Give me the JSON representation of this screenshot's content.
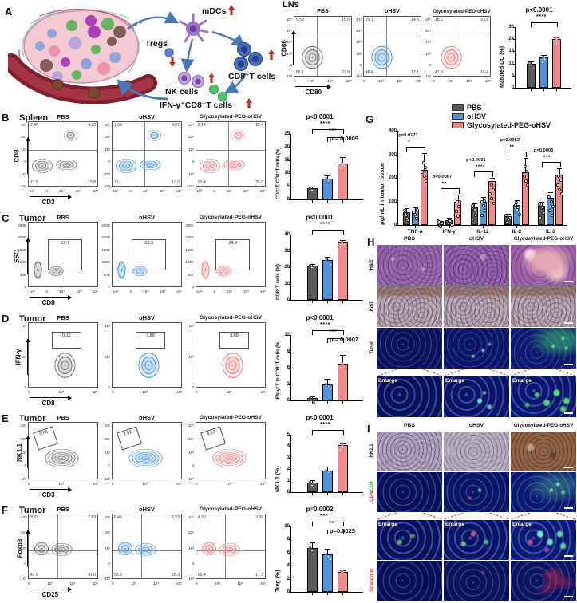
{
  "colors": {
    "pbs": "#595959",
    "ohsv": "#4e95de",
    "glyco": "#f1898b",
    "sig_red": "#b5342c",
    "arrow_blue": "#4878b8"
  },
  "groups": [
    "PBS",
    "oHSV",
    "Glycosylated-PEG-oHSV"
  ],
  "panel_a": {
    "label": "A",
    "mdcs": "mDCs",
    "tregs": "Tregs",
    "nk": "NK cells",
    "cd8": "CD8⁺T cells",
    "ifng": "IFN-γ⁺CD8⁺T cells",
    "trends": {
      "mdcs": "up",
      "tregs": "down",
      "nk": "up",
      "cd8": "up",
      "ifng": "up"
    }
  },
  "flow_rows": [
    {
      "key": "lns",
      "panel_label": "",
      "tissue": "LNs",
      "y_axis": "CD86",
      "x_axis": "CD80",
      "mode": "quad",
      "y_ticks": [
        "10⁵",
        "10⁴",
        "10³",
        "10²",
        "0",
        "-10²"
      ],
      "x_ticks": [
        "0",
        "10³",
        "10⁴",
        "10⁵"
      ],
      "values": [
        [
          "9.59",
          "10.5",
          "56.1",
          "23.9"
        ],
        [
          "20.1",
          "14.5",
          "48.4",
          "17.1"
        ],
        [
          "18.2",
          "23.5",
          "41.9",
          "16.4"
        ]
      ],
      "bar": {
        "ylabel": "Matured DC (%)",
        "max": 30,
        "ticks": [
          0,
          6,
          12,
          18,
          24,
          30
        ],
        "means": [
          12,
          15,
          24
        ],
        "errs": [
          0.9,
          1.2,
          0.9
        ],
        "sig": [
          {
            "text": "p<0.0001",
            "stars": "****"
          }
        ]
      }
    },
    {
      "key": "b",
      "panel_label": "B",
      "tissue": "Spleen",
      "y_axis": "CD8",
      "x_axis": "CD3",
      "mode": "quad",
      "y_ticks": [
        "10⁵",
        "10⁴",
        "10³",
        "0",
        "-10³",
        "-10⁴"
      ],
      "x_ticks": [
        "-10³",
        "0",
        "10³",
        "10⁴",
        "10⁵"
      ],
      "values": [
        [
          "2.46",
          "4.28",
          "77.5",
          "15.8"
        ],
        [
          "1.96",
          "6.07",
          "79.1",
          "13.0"
        ],
        [
          "2.14",
          "12.4",
          "60.4",
          "25.0"
        ]
      ],
      "bar": {
        "ylabel": "CD3⁺T CD8⁺T cells (%)",
        "max": 25,
        "ticks": [
          0,
          5,
          10,
          15,
          20,
          25
        ],
        "means": [
          4.3,
          8,
          13.7
        ],
        "errs": [
          0.5,
          1.1,
          2.6
        ],
        "sig": [
          {
            "text": "p<0.0001",
            "stars": "****"
          },
          {
            "text": "p = 0.0009",
            "stars": "***"
          }
        ]
      }
    },
    {
      "key": "c",
      "panel_label": "C",
      "tissue": "Tumor",
      "y_axis": "SSC",
      "x_axis": "CD8",
      "mode": "gate",
      "y_ticks": [
        "250K",
        "200K",
        "150K",
        "100K",
        "50K",
        "0"
      ],
      "x_ticks": [
        "-10⁴",
        "0",
        "10⁴",
        "10⁵",
        "10⁶"
      ],
      "values": [
        "19.7",
        "23.3",
        "34.9"
      ],
      "bar": {
        "ylabel": "CD8⁺T cells (%)",
        "max": 40,
        "ticks": [
          0,
          10,
          20,
          30,
          40
        ],
        "means": [
          21,
          24.5,
          35
        ],
        "errs": [
          1,
          1.6,
          1.6
        ],
        "sig": [
          {
            "text": "p<0.0001",
            "stars": "****"
          }
        ]
      }
    },
    {
      "key": "d",
      "panel_label": "D",
      "tissue": "Tumor",
      "y_axis": "IFN-γ",
      "x_axis": "CD8",
      "mode": "gate",
      "y_ticks": [
        "10³",
        "10²",
        "0"
      ],
      "x_ticks": [
        "0",
        "10³",
        "10⁵"
      ],
      "values": [
        "0.12",
        "3.89",
        "9.89"
      ],
      "bar": {
        "ylabel": "IFN-γ⁺T in CD8⁺T cells (%)",
        "max": 12,
        "ticks": [
          0,
          3,
          6,
          9,
          12
        ],
        "means": [
          0.5,
          3,
          6.8
        ],
        "errs": [
          0.3,
          0.9,
          1.6
        ],
        "sig": [
          {
            "text": "p<0.0001",
            "stars": "****"
          },
          {
            "text": "p = 0.0007",
            "stars": "***"
          }
        ]
      }
    },
    {
      "key": "e",
      "panel_label": "E",
      "tissue": "Tumor",
      "y_axis": "NK1.1",
      "x_axis": "CD3",
      "mode": "gate-diamond",
      "y_ticks": [
        "10⁵",
        "10⁴",
        "10³",
        "0",
        "-10³"
      ],
      "x_ticks": [
        "0",
        "10³",
        "10⁴"
      ],
      "values": [
        "0.66",
        "2.52",
        "4.10"
      ],
      "bar": {
        "ylabel": "NK1.1 (%)",
        "max": 5,
        "ticks": [
          0,
          1,
          2,
          3,
          4,
          5
        ],
        "means": [
          0.8,
          1.9,
          4.1
        ],
        "errs": [
          0.25,
          0.35,
          0.15
        ],
        "sig": [
          {
            "text": "p<0.0001",
            "stars": "****"
          }
        ]
      }
    },
    {
      "key": "f",
      "panel_label": "F",
      "tissue": "Tumor",
      "y_axis": "Foxp3",
      "x_axis": "CD25",
      "mode": "quad",
      "y_ticks": [
        "10⁵",
        "10⁴",
        "10³",
        "0",
        "-10³"
      ],
      "x_ticks": [
        "0",
        "10³",
        "10⁴",
        "10⁵"
      ],
      "values": [
        [
          "3.33",
          "7.69",
          "47.9",
          "41.0"
        ],
        [
          "6.45",
          "6.63",
          "58.6",
          "28.3"
        ],
        [
          "4.30",
          "2.99",
          "65.4",
          "27.3"
        ]
      ],
      "bar": {
        "ylabel": "Treg (%)",
        "max": 10,
        "ticks": [
          0,
          2,
          4,
          6,
          8,
          10
        ],
        "means": [
          6.7,
          5.7,
          3.1
        ],
        "errs": [
          0.9,
          0.9,
          0.2
        ],
        "sig": [
          {
            "text": "p=0.0002",
            "stars": "***"
          },
          {
            "text": "p=0.0025",
            "stars": "**"
          }
        ]
      }
    }
  ],
  "panel_g": {
    "label": "G",
    "ylabel": "pg/mL in tumor tissue",
    "max": 400,
    "ticks": [
      0,
      100,
      200,
      300,
      400
    ],
    "chart_data": {
      "type": "bar",
      "categories": [
        "TNF-α",
        "IFN-γ",
        "IL-12",
        "IL-2",
        "IL-6"
      ],
      "series": [
        {
          "name": "PBS",
          "values": [
            55,
            18,
            75,
            38,
            80
          ],
          "errs": [
            15,
            8,
            15,
            10,
            20
          ]
        },
        {
          "name": "oHSV",
          "values": [
            60,
            22,
            100,
            85,
            115
          ],
          "errs": [
            15,
            8,
            20,
            20,
            25
          ]
        },
        {
          "name": "Glycosylated-PEG-oHSV",
          "values": [
            235,
            100,
            185,
            225,
            215
          ],
          "errs": [
            70,
            30,
            15,
            60,
            25
          ]
        }
      ],
      "pvals": [
        {
          "text": "p=0.0171",
          "stars": "*"
        },
        {
          "text": "p=0.0067",
          "stars": "**"
        },
        {
          "text": "p<0.0001",
          "stars": "****"
        },
        {
          "text": "p=0.0053",
          "stars": "**"
        },
        {
          "text": "p=0.0005",
          "stars": "***"
        }
      ]
    }
  },
  "panel_h": {
    "label": "H",
    "rows": [
      {
        "label": "H&E"
      },
      {
        "label": "Ki67"
      },
      {
        "label": "Tunel"
      },
      {
        "label": "Enlarge",
        "overlay": true
      }
    ]
  },
  "panel_i": {
    "label": "I",
    "rows": [
      {
        "label": "NK1.1"
      },
      {
        "label": "CD4/CD8",
        "multi": [
          [
            "CD4",
            "#e8392f"
          ],
          [
            "/",
            "#222222"
          ],
          [
            "CD8",
            "#2ea82e"
          ]
        ]
      },
      {
        "label": "Enlarge",
        "overlay": true
      },
      {
        "label": "Granzyme",
        "color": "#e8392f"
      }
    ]
  },
  "enlarge_label": "Enlarge"
}
